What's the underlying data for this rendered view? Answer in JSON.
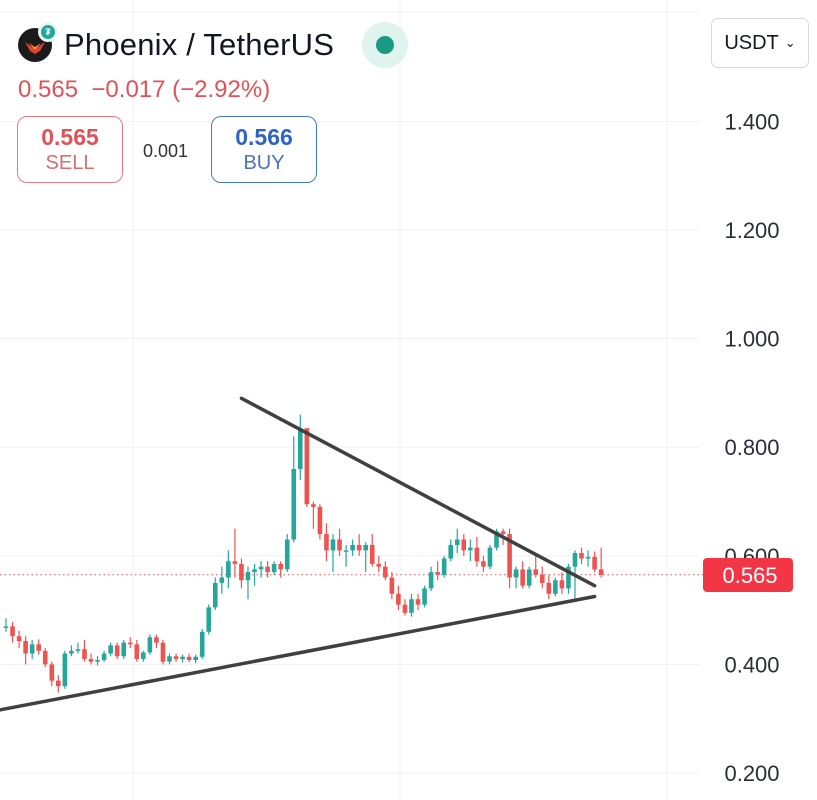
{
  "header": {
    "pair_title": "Phoenix / TetherUS",
    "logo_icon": "phoenix-logo-icon",
    "badge_icon": "tether-badge-icon",
    "last_price": "0.565",
    "change": "−0.017",
    "change_pct": "(−2.92%)",
    "status_color": "#1a9a83"
  },
  "trade": {
    "sell_price": "0.565",
    "sell_label": "SELL",
    "spread": "0.001",
    "buy_price": "0.566",
    "buy_label": "BUY"
  },
  "currency": {
    "selected": "USDT"
  },
  "colors": {
    "up": "#26a69a",
    "down": "#ef5350",
    "price_tag": "#f23645",
    "trendline": "#404040"
  },
  "chart_data": {
    "type": "candlestick",
    "ylim": [
      0.18,
      1.5
    ],
    "yticks": [
      "0.200",
      "0.400",
      "0.600",
      "0.800",
      "1.000",
      "1.200",
      "1.400"
    ],
    "current_price_label": "0.565",
    "current_price": 0.565,
    "candles": [
      [
        0.47,
        0.485,
        0.46,
        0.47
      ],
      [
        0.47,
        0.478,
        0.44,
        0.452
      ],
      [
        0.452,
        0.462,
        0.43,
        0.443
      ],
      [
        0.443,
        0.452,
        0.4,
        0.42
      ],
      [
        0.42,
        0.445,
        0.41,
        0.437
      ],
      [
        0.437,
        0.446,
        0.418,
        0.425
      ],
      [
        0.425,
        0.43,
        0.395,
        0.4
      ],
      [
        0.4,
        0.405,
        0.36,
        0.37
      ],
      [
        0.37,
        0.38,
        0.348,
        0.36
      ],
      [
        0.36,
        0.425,
        0.355,
        0.42
      ],
      [
        0.42,
        0.435,
        0.415,
        0.425
      ],
      [
        0.425,
        0.44,
        0.42,
        0.428
      ],
      [
        0.428,
        0.445,
        0.405,
        0.41
      ],
      [
        0.41,
        0.42,
        0.4,
        0.405
      ],
      [
        0.405,
        0.415,
        0.398,
        0.408
      ],
      [
        0.408,
        0.425,
        0.405,
        0.42
      ],
      [
        0.42,
        0.44,
        0.415,
        0.435
      ],
      [
        0.435,
        0.44,
        0.41,
        0.415
      ],
      [
        0.415,
        0.445,
        0.41,
        0.44
      ],
      [
        0.44,
        0.45,
        0.43,
        0.437
      ],
      [
        0.437,
        0.445,
        0.405,
        0.41
      ],
      [
        0.41,
        0.425,
        0.405,
        0.422
      ],
      [
        0.422,
        0.455,
        0.418,
        0.45
      ],
      [
        0.45,
        0.455,
        0.43,
        0.44
      ],
      [
        0.44,
        0.445,
        0.4,
        0.405
      ],
      [
        0.405,
        0.42,
        0.4,
        0.415
      ],
      [
        0.415,
        0.42,
        0.405,
        0.41
      ],
      [
        0.41,
        0.418,
        0.404,
        0.414
      ],
      [
        0.414,
        0.42,
        0.404,
        0.408
      ],
      [
        0.408,
        0.418,
        0.402,
        0.414
      ],
      [
        0.414,
        0.465,
        0.41,
        0.46
      ],
      [
        0.46,
        0.51,
        0.455,
        0.505
      ],
      [
        0.505,
        0.56,
        0.5,
        0.55
      ],
      [
        0.55,
        0.58,
        0.53,
        0.56
      ],
      [
        0.56,
        0.61,
        0.54,
        0.59
      ],
      [
        0.59,
        0.65,
        0.56,
        0.585
      ],
      [
        0.585,
        0.595,
        0.54,
        0.555
      ],
      [
        0.555,
        0.58,
        0.52,
        0.57
      ],
      [
        0.57,
        0.585,
        0.545,
        0.575
      ],
      [
        0.575,
        0.59,
        0.56,
        0.58
      ],
      [
        0.58,
        0.59,
        0.56,
        0.57
      ],
      [
        0.57,
        0.59,
        0.565,
        0.585
      ],
      [
        0.585,
        0.59,
        0.56,
        0.575
      ],
      [
        0.575,
        0.64,
        0.57,
        0.63
      ],
      [
        0.63,
        0.82,
        0.625,
        0.76
      ],
      [
        0.76,
        0.86,
        0.74,
        0.835
      ],
      [
        0.835,
        0.835,
        0.69,
        0.695
      ],
      [
        0.695,
        0.7,
        0.65,
        0.69
      ],
      [
        0.69,
        0.695,
        0.63,
        0.64
      ],
      [
        0.64,
        0.66,
        0.59,
        0.61
      ],
      [
        0.61,
        0.64,
        0.57,
        0.63
      ],
      [
        0.63,
        0.65,
        0.6,
        0.61
      ],
      [
        0.61,
        0.62,
        0.58,
        0.61
      ],
      [
        0.61,
        0.63,
        0.6,
        0.62
      ],
      [
        0.62,
        0.64,
        0.6,
        0.61
      ],
      [
        0.61,
        0.625,
        0.57,
        0.62
      ],
      [
        0.62,
        0.64,
        0.58,
        0.585
      ],
      [
        0.585,
        0.6,
        0.57,
        0.58
      ],
      [
        0.58,
        0.59,
        0.555,
        0.56
      ],
      [
        0.56,
        0.57,
        0.52,
        0.53
      ],
      [
        0.53,
        0.545,
        0.5,
        0.51
      ],
      [
        0.51,
        0.52,
        0.49,
        0.495
      ],
      [
        0.495,
        0.53,
        0.488,
        0.52
      ],
      [
        0.52,
        0.53,
        0.5,
        0.51
      ],
      [
        0.51,
        0.545,
        0.505,
        0.54
      ],
      [
        0.54,
        0.58,
        0.535,
        0.57
      ],
      [
        0.57,
        0.59,
        0.555,
        0.565
      ],
      [
        0.565,
        0.6,
        0.56,
        0.595
      ],
      [
        0.595,
        0.63,
        0.59,
        0.62
      ],
      [
        0.62,
        0.65,
        0.605,
        0.63
      ],
      [
        0.63,
        0.64,
        0.6,
        0.61
      ],
      [
        0.61,
        0.63,
        0.59,
        0.615
      ],
      [
        0.615,
        0.635,
        0.58,
        0.59
      ],
      [
        0.59,
        0.6,
        0.57,
        0.58
      ],
      [
        0.58,
        0.62,
        0.575,
        0.615
      ],
      [
        0.615,
        0.65,
        0.61,
        0.645
      ],
      [
        0.645,
        0.65,
        0.62,
        0.64
      ],
      [
        0.64,
        0.65,
        0.54,
        0.56
      ],
      [
        0.56,
        0.58,
        0.54,
        0.575
      ],
      [
        0.575,
        0.59,
        0.54,
        0.545
      ],
      [
        0.545,
        0.58,
        0.54,
        0.575
      ],
      [
        0.575,
        0.6,
        0.56,
        0.565
      ],
      [
        0.565,
        0.58,
        0.54,
        0.55
      ],
      [
        0.55,
        0.565,
        0.52,
        0.53
      ],
      [
        0.53,
        0.56,
        0.525,
        0.555
      ],
      [
        0.555,
        0.57,
        0.53,
        0.54
      ],
      [
        0.54,
        0.585,
        0.53,
        0.58
      ],
      [
        0.58,
        0.61,
        0.52,
        0.605
      ],
      [
        0.605,
        0.615,
        0.585,
        0.595
      ],
      [
        0.595,
        0.61,
        0.58,
        0.598
      ],
      [
        0.598,
        0.608,
        0.57,
        0.575
      ],
      [
        0.575,
        0.615,
        0.56,
        0.565
      ]
    ],
    "trendlines": [
      {
        "name": "upper",
        "from": [
          36,
          0.89
        ],
        "to": [
          90,
          0.545
        ]
      },
      {
        "name": "lower",
        "from": [
          -8,
          0.3
        ],
        "to": [
          90,
          0.525
        ]
      }
    ]
  }
}
